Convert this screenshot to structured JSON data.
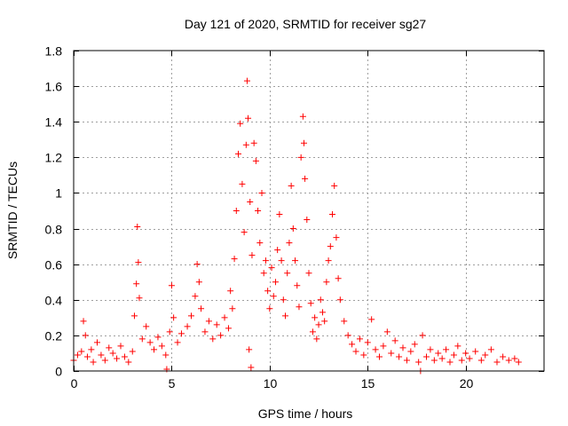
{
  "chart_data": {
    "type": "scatter",
    "title": "Day 121 of 2020, SRMTID for receiver sg27",
    "xlabel": "GPS time / hours",
    "ylabel": "SRMTID / TECUs",
    "xlim": [
      0,
      24
    ],
    "ylim": [
      0,
      1.8
    ],
    "x_ticks": [
      0,
      5,
      10,
      15,
      20
    ],
    "x_tick_labels": [
      "0",
      "5",
      "10",
      "15",
      "20"
    ],
    "y_ticks": [
      0,
      0.2,
      0.4,
      0.6,
      0.8,
      1,
      1.2,
      1.4,
      1.6,
      1.8
    ],
    "y_tick_labels": [
      "0",
      "0.2",
      "0.4",
      "0.6",
      "0.8",
      "1",
      "1.2",
      "1.4",
      "1.6",
      "1.8"
    ],
    "grid": true,
    "marker": "+",
    "color": "#ff0000",
    "series": [
      {
        "name": "SRMTID sg27",
        "points": [
          [
            0.0,
            0.06
          ],
          [
            0.2,
            0.09
          ],
          [
            0.4,
            0.11
          ],
          [
            0.5,
            0.28
          ],
          [
            0.6,
            0.2
          ],
          [
            0.7,
            0.08
          ],
          [
            0.9,
            0.12
          ],
          [
            1.0,
            0.05
          ],
          [
            1.2,
            0.16
          ],
          [
            1.4,
            0.09
          ],
          [
            1.6,
            0.06
          ],
          [
            1.8,
            0.13
          ],
          [
            2.0,
            0.1
          ],
          [
            2.2,
            0.07
          ],
          [
            2.4,
            0.14
          ],
          [
            2.6,
            0.08
          ],
          [
            2.8,
            0.05
          ],
          [
            3.0,
            0.11
          ],
          [
            3.1,
            0.31
          ],
          [
            3.2,
            0.49
          ],
          [
            3.25,
            0.81
          ],
          [
            3.3,
            0.61
          ],
          [
            3.35,
            0.41
          ],
          [
            3.5,
            0.18
          ],
          [
            3.7,
            0.25
          ],
          [
            3.9,
            0.16
          ],
          [
            4.1,
            0.12
          ],
          [
            4.3,
            0.19
          ],
          [
            4.5,
            0.14
          ],
          [
            4.7,
            0.09
          ],
          [
            4.75,
            0.01
          ],
          [
            4.9,
            0.22
          ],
          [
            5.0,
            0.48
          ],
          [
            5.1,
            0.3
          ],
          [
            5.3,
            0.16
          ],
          [
            5.5,
            0.21
          ],
          [
            5.8,
            0.25
          ],
          [
            6.0,
            0.31
          ],
          [
            6.2,
            0.42
          ],
          [
            6.3,
            0.6
          ],
          [
            6.4,
            0.5
          ],
          [
            6.5,
            0.35
          ],
          [
            6.7,
            0.22
          ],
          [
            6.9,
            0.28
          ],
          [
            7.1,
            0.18
          ],
          [
            7.3,
            0.26
          ],
          [
            7.5,
            0.2
          ],
          [
            7.7,
            0.3
          ],
          [
            7.9,
            0.24
          ],
          [
            8.0,
            0.45
          ],
          [
            8.1,
            0.35
          ],
          [
            8.2,
            0.63
          ],
          [
            8.3,
            0.9
          ],
          [
            8.4,
            1.22
          ],
          [
            8.5,
            1.39
          ],
          [
            8.6,
            1.05
          ],
          [
            8.7,
            0.78
          ],
          [
            8.8,
            1.27
          ],
          [
            8.85,
            1.63
          ],
          [
            8.9,
            1.42
          ],
          [
            8.95,
            0.12
          ],
          [
            9.0,
            0.95
          ],
          [
            9.05,
            0.02
          ],
          [
            9.1,
            0.65
          ],
          [
            9.2,
            1.28
          ],
          [
            9.3,
            1.18
          ],
          [
            9.4,
            0.9
          ],
          [
            9.5,
            0.72
          ],
          [
            9.6,
            1.0
          ],
          [
            9.7,
            0.55
          ],
          [
            9.8,
            0.62
          ],
          [
            9.9,
            0.45
          ],
          [
            10.0,
            0.35
          ],
          [
            10.1,
            0.58
          ],
          [
            10.2,
            0.42
          ],
          [
            10.3,
            0.5
          ],
          [
            10.4,
            0.68
          ],
          [
            10.5,
            0.88
          ],
          [
            10.6,
            0.62
          ],
          [
            10.7,
            0.4
          ],
          [
            10.8,
            0.31
          ],
          [
            10.9,
            0.55
          ],
          [
            11.0,
            0.72
          ],
          [
            11.1,
            1.04
          ],
          [
            11.2,
            0.8
          ],
          [
            11.3,
            0.62
          ],
          [
            11.4,
            0.48
          ],
          [
            11.5,
            0.36
          ],
          [
            11.6,
            1.2
          ],
          [
            11.7,
            1.43
          ],
          [
            11.75,
            1.28
          ],
          [
            11.8,
            1.08
          ],
          [
            11.9,
            0.85
          ],
          [
            12.0,
            0.55
          ],
          [
            12.1,
            0.38
          ],
          [
            12.2,
            0.22
          ],
          [
            12.3,
            0.3
          ],
          [
            12.4,
            0.18
          ],
          [
            12.5,
            0.26
          ],
          [
            12.6,
            0.4
          ],
          [
            12.7,
            0.33
          ],
          [
            12.8,
            0.28
          ],
          [
            12.9,
            0.5
          ],
          [
            13.0,
            0.62
          ],
          [
            13.1,
            0.7
          ],
          [
            13.2,
            0.88
          ],
          [
            13.3,
            1.04
          ],
          [
            13.4,
            0.75
          ],
          [
            13.5,
            0.52
          ],
          [
            13.6,
            0.4
          ],
          [
            13.8,
            0.28
          ],
          [
            14.0,
            0.2
          ],
          [
            14.2,
            0.15
          ],
          [
            14.4,
            0.11
          ],
          [
            14.6,
            0.18
          ],
          [
            14.8,
            0.09
          ],
          [
            15.0,
            0.16
          ],
          [
            15.2,
            0.29
          ],
          [
            15.4,
            0.12
          ],
          [
            15.6,
            0.08
          ],
          [
            15.8,
            0.14
          ],
          [
            16.0,
            0.22
          ],
          [
            16.2,
            0.1
          ],
          [
            16.4,
            0.17
          ],
          [
            16.6,
            0.08
          ],
          [
            16.8,
            0.13
          ],
          [
            17.0,
            0.06
          ],
          [
            17.2,
            0.11
          ],
          [
            17.4,
            0.15
          ],
          [
            17.6,
            0.05
          ],
          [
            17.7,
            0.0
          ],
          [
            17.8,
            0.2
          ],
          [
            18.0,
            0.08
          ],
          [
            18.2,
            0.12
          ],
          [
            18.4,
            0.06
          ],
          [
            18.6,
            0.1
          ],
          [
            18.8,
            0.07
          ],
          [
            19.0,
            0.12
          ],
          [
            19.2,
            0.05
          ],
          [
            19.4,
            0.09
          ],
          [
            19.6,
            0.14
          ],
          [
            19.8,
            0.06
          ],
          [
            20.0,
            0.1
          ],
          [
            20.2,
            0.07
          ],
          [
            20.5,
            0.11
          ],
          [
            20.8,
            0.06
          ],
          [
            21.0,
            0.09
          ],
          [
            21.3,
            0.12
          ],
          [
            21.6,
            0.05
          ],
          [
            21.9,
            0.08
          ],
          [
            22.2,
            0.06
          ],
          [
            22.5,
            0.07
          ],
          [
            22.7,
            0.05
          ]
        ]
      }
    ]
  }
}
